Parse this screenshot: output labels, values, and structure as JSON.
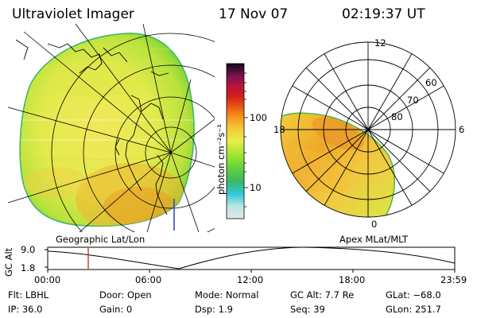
{
  "header": {
    "title": "Ultraviolet Imager",
    "date": "17 Nov 07",
    "time": "02:19:37 UT"
  },
  "geo_panel": {
    "label": "Geographic Lat/Lon"
  },
  "mag_panel": {
    "label": "Apex MLat/MLT",
    "mlt_labels": [
      "12",
      "18",
      "6",
      "0"
    ],
    "mlat_labels": [
      "60",
      "70",
      "80"
    ]
  },
  "colorbar": {
    "unit_label": "photon cm⁻²s⁻¹",
    "tick_labels": [
      "100",
      "10"
    ],
    "scale": "log",
    "colors": [
      "#e6e6e6",
      "#b9e6e0",
      "#30c8d8",
      "#3cb864",
      "#63d23c",
      "#a8e632",
      "#e8ee4a",
      "#f5c93c",
      "#f59a1e",
      "#e85a14",
      "#d21e1e",
      "#b4143c",
      "#781450",
      "#3c0a32",
      "#0a0a1e"
    ]
  },
  "altitude_plot": {
    "ylabel": "GC Alt",
    "ytick_top": "9.0",
    "ytick_bottom": "1.8",
    "xticks": [
      "00:00",
      "06:00",
      "12:00",
      "18:00",
      "23:59"
    ],
    "marker_color": "#d21e1e"
  },
  "info": {
    "flt": "Flt: LBHL",
    "door": "Door: Open",
    "mode": "Mode: Normal",
    "gcalt": "GC Alt: 7.7 Re",
    "glat": "GLat: −68.0",
    "ip": "IP: 36.0",
    "gain": "Gain:  0",
    "dsp": "Dsp:    1.9",
    "seq": "Seq: 39",
    "glon": "GLon: 251.7"
  }
}
